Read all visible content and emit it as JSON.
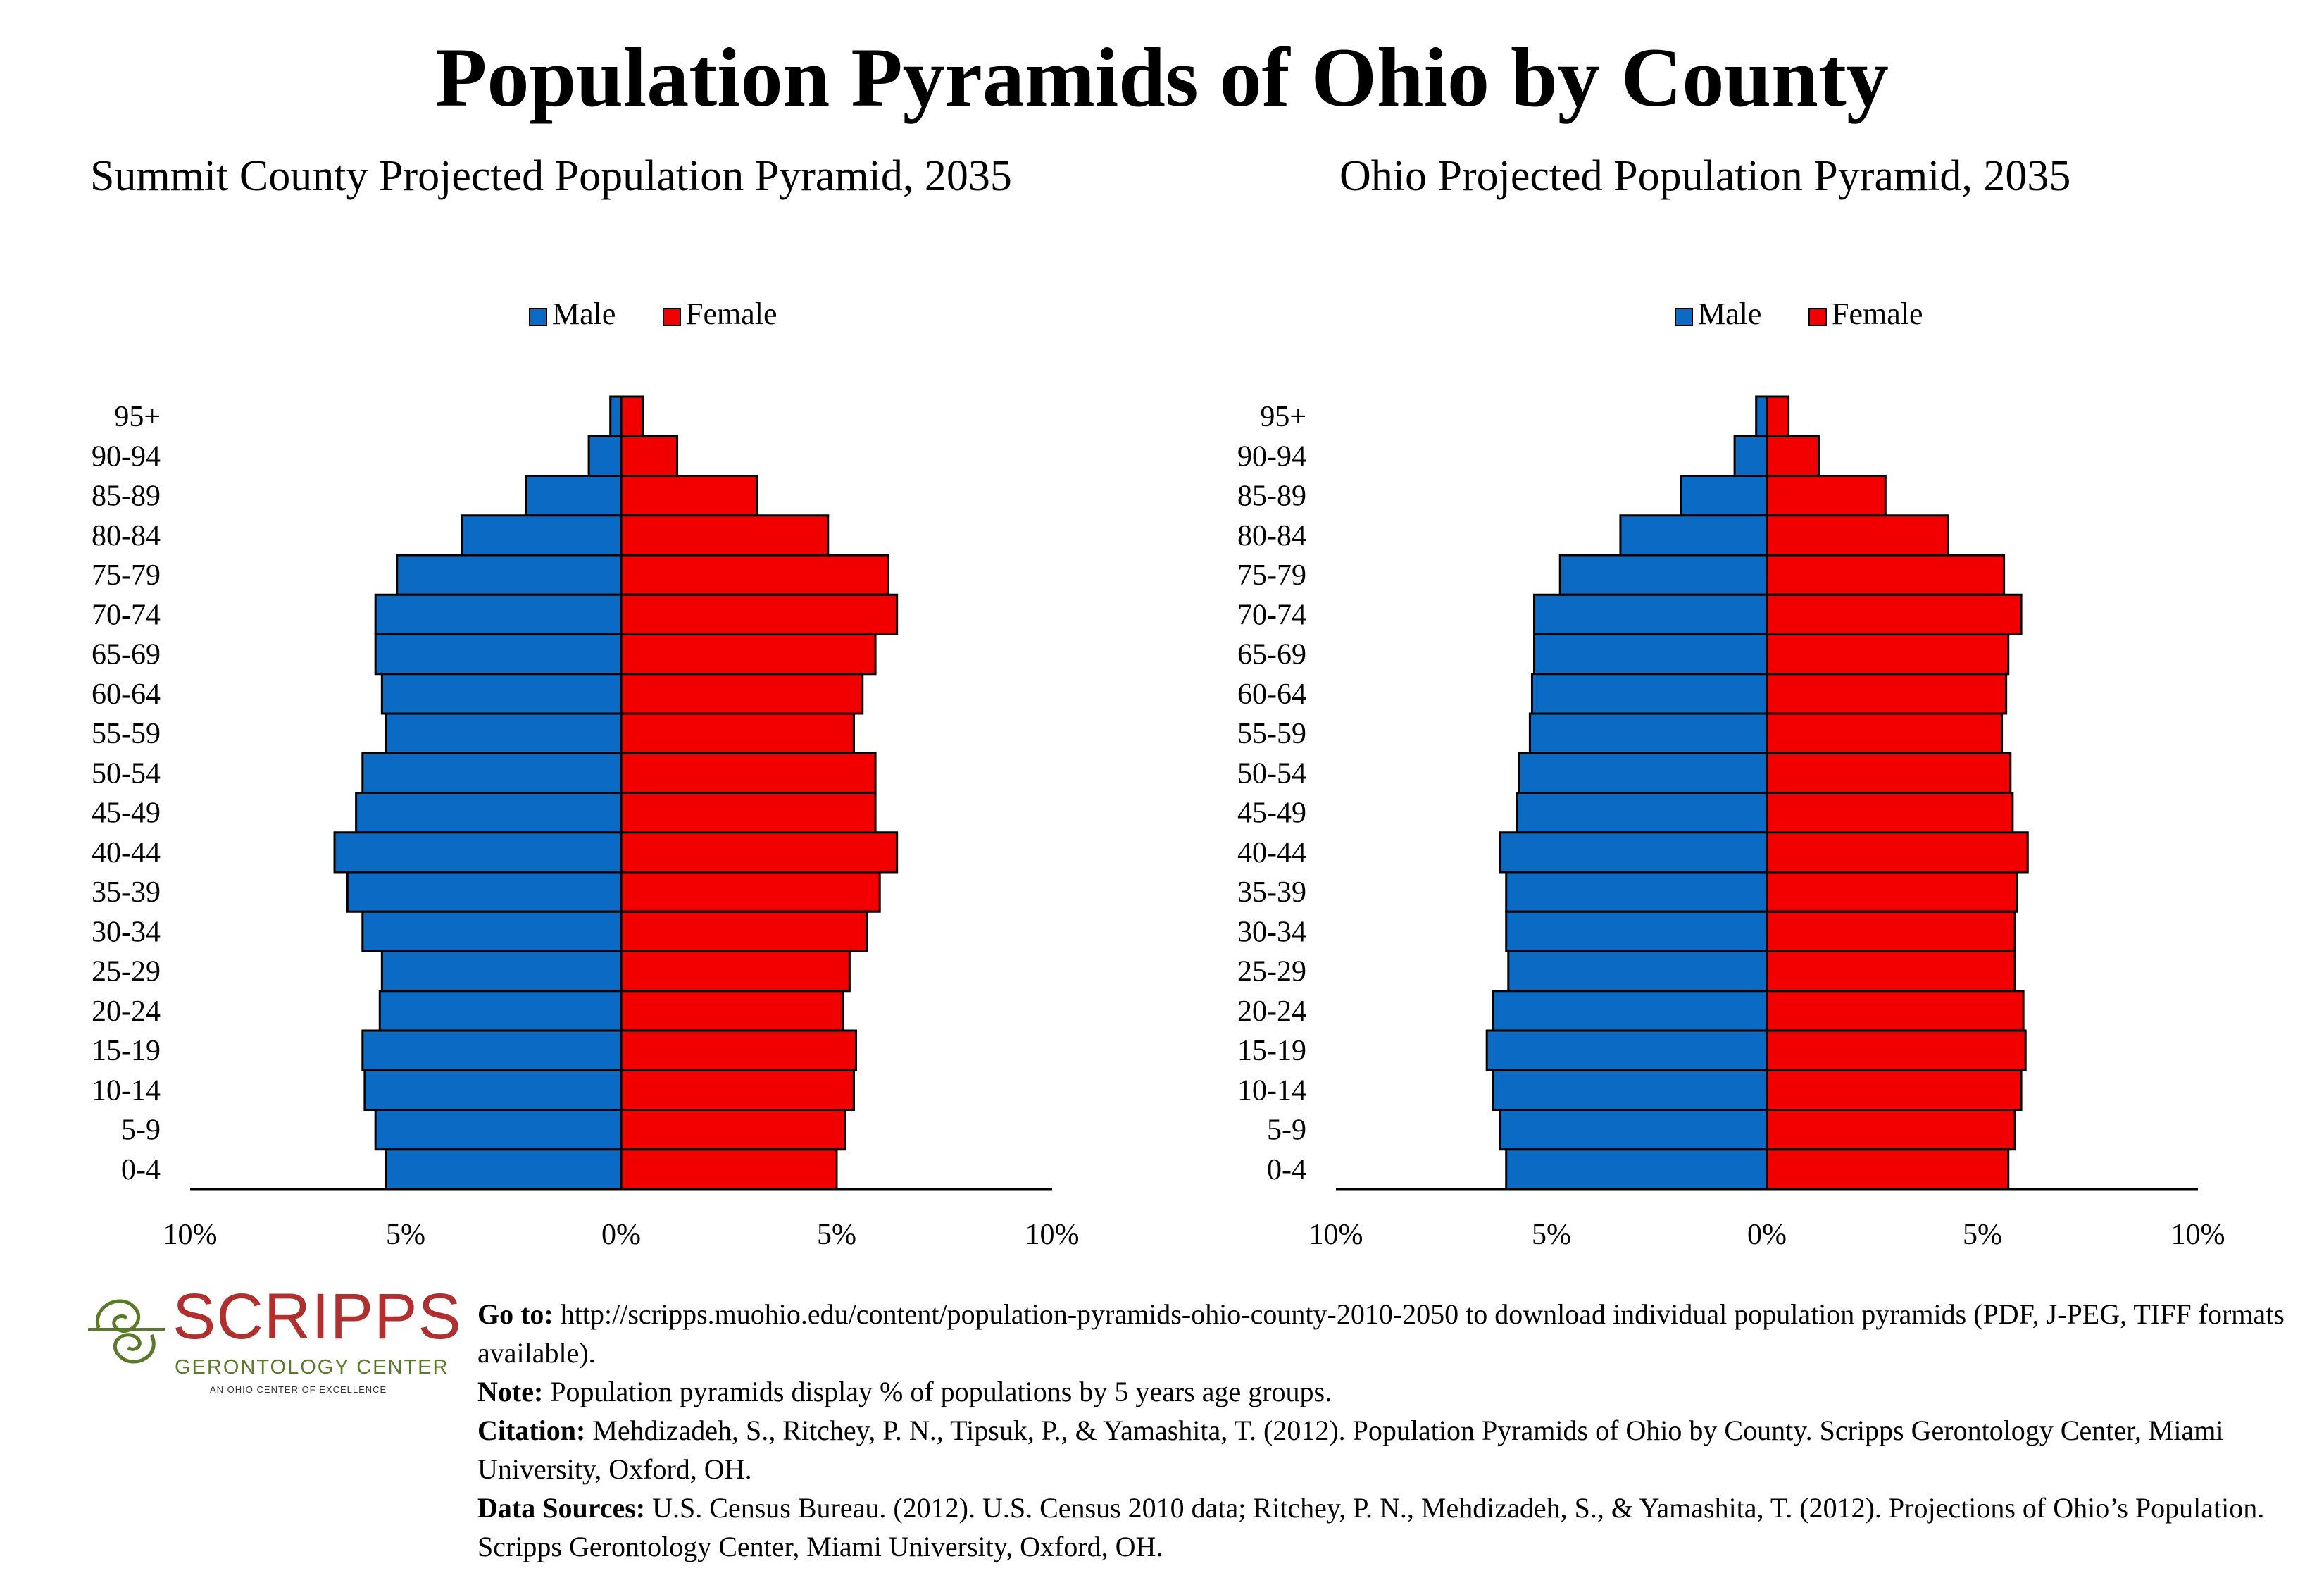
{
  "title": "Population Pyramids of Ohio by County",
  "legend": {
    "male": "Male",
    "female": "Female"
  },
  "colors": {
    "male": "#0B6BC4",
    "female": "#F20000"
  },
  "footer": {
    "logo_word": "SCRIPPS",
    "logo_sub": "GERONTOLOGY CENTER",
    "logo_tag": "AN OHIO CENTER OF EXCELLENCE",
    "goto_label": "Go to:",
    "goto_text": " http://scripps.muohio.edu/content/population-pyramids-ohio-county-2010-2050 to download individual population pyramids (PDF, J-PEG, TIFF formats available).",
    "note_label": "Note:",
    "note_text": " Population pyramids display % of populations by 5 years age groups.",
    "citation_label": "Citation:",
    "citation_text": " Mehdizadeh, S., Ritchey, P. N., Tipsuk, P., & Yamashita, T. (2012). Population Pyramids of Ohio by County. Scripps Gerontology Center, Miami University, Oxford, OH.",
    "sources_label": "Data Sources:",
    "sources_text": " U.S. Census Bureau. (2012). U.S. Census 2010 data; Ritchey, P. N., Mehdizadeh, S., & Yamashita, T. (2012). Projections of Ohio’s Population. Scripps Gerontology Center, Miami University, Oxford, OH."
  },
  "chart_data": [
    {
      "type": "bar",
      "orientation": "horizontal-pyramid",
      "title": "Summit County Projected Population Pyramid, 2035",
      "categories": [
        "95+",
        "90-94",
        "85-89",
        "80-84",
        "75-79",
        "70-74",
        "65-69",
        "60-64",
        "55-59",
        "50-54",
        "45-49",
        "40-44",
        "35-39",
        "30-34",
        "25-29",
        "20-24",
        "15-19",
        "10-14",
        "5-9",
        "0-4"
      ],
      "series": [
        {
          "name": "Male",
          "values": [
            0.25,
            0.75,
            2.2,
            3.7,
            5.2,
            5.7,
            5.7,
            5.55,
            5.45,
            6.0,
            6.15,
            6.65,
            6.35,
            6.0,
            5.55,
            5.6,
            6.0,
            5.95,
            5.7,
            5.45
          ]
        },
        {
          "name": "Female",
          "values": [
            0.5,
            1.3,
            3.15,
            4.8,
            6.2,
            6.4,
            5.9,
            5.6,
            5.4,
            5.9,
            5.9,
            6.4,
            6.0,
            5.7,
            5.3,
            5.15,
            5.45,
            5.4,
            5.2,
            5.0
          ]
        }
      ],
      "xlim": [
        -10,
        10
      ],
      "xticks": [
        "10%",
        "5%",
        "0%",
        "5%",
        "10%"
      ],
      "legend_position": "top"
    },
    {
      "type": "bar",
      "orientation": "horizontal-pyramid",
      "title": "Ohio Projected Population Pyramid, 2035",
      "categories": [
        "95+",
        "90-94",
        "85-89",
        "80-84",
        "75-79",
        "70-74",
        "65-69",
        "60-64",
        "55-59",
        "50-54",
        "45-49",
        "40-44",
        "35-39",
        "30-34",
        "25-29",
        "20-24",
        "15-19",
        "10-14",
        "5-9",
        "0-4"
      ],
      "series": [
        {
          "name": "Male",
          "values": [
            0.25,
            0.75,
            2.0,
            3.4,
            4.8,
            5.4,
            5.4,
            5.45,
            5.5,
            5.75,
            5.8,
            6.2,
            6.05,
            6.05,
            6.0,
            6.35,
            6.5,
            6.35,
            6.2,
            6.05
          ]
        },
        {
          "name": "Female",
          "values": [
            0.5,
            1.2,
            2.75,
            4.2,
            5.5,
            5.9,
            5.6,
            5.55,
            5.45,
            5.65,
            5.7,
            6.05,
            5.8,
            5.75,
            5.75,
            5.95,
            6.0,
            5.9,
            5.75,
            5.6
          ]
        }
      ],
      "xlim": [
        -10,
        10
      ],
      "xticks": [
        "10%",
        "5%",
        "0%",
        "5%",
        "10%"
      ],
      "legend_position": "top"
    }
  ]
}
